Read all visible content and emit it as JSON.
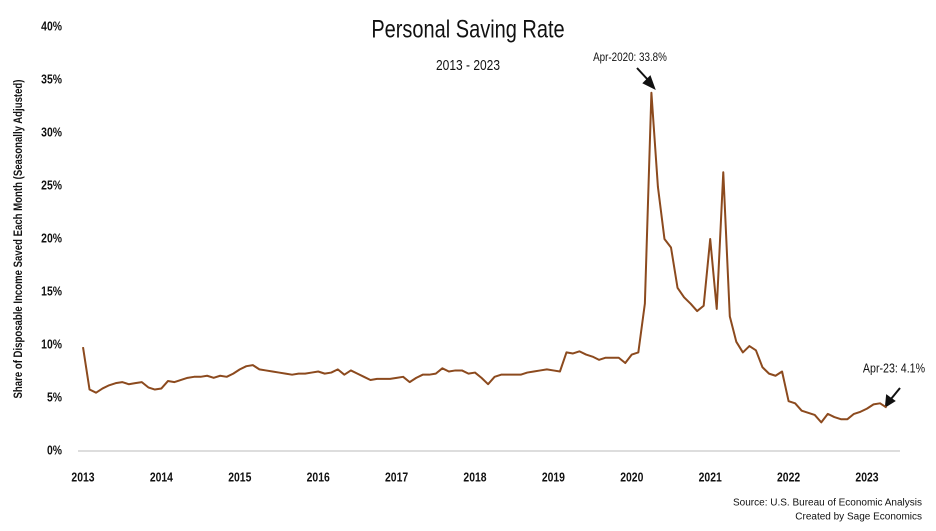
{
  "chart_data": {
    "type": "line",
    "title": "Personal Saving Rate",
    "subtitle": "2013 - 2023",
    "ylabel": "Share of Disposable Income Saved Each Month (Seasonally Adjusted)",
    "categories": [
      "2013",
      null,
      null,
      null,
      null,
      null,
      null,
      null,
      null,
      null,
      null,
      null,
      "2014",
      null,
      null,
      null,
      null,
      null,
      null,
      null,
      null,
      null,
      null,
      null,
      "2015",
      null,
      null,
      null,
      null,
      null,
      null,
      null,
      null,
      null,
      null,
      null,
      "2016",
      null,
      null,
      null,
      null,
      null,
      null,
      null,
      null,
      null,
      null,
      null,
      "2017",
      null,
      null,
      null,
      null,
      null,
      null,
      null,
      null,
      null,
      null,
      null,
      "2018",
      null,
      null,
      null,
      null,
      null,
      null,
      null,
      null,
      null,
      null,
      null,
      "2019",
      null,
      null,
      null,
      null,
      null,
      null,
      null,
      null,
      null,
      null,
      null,
      "2020",
      null,
      null,
      null,
      null,
      null,
      null,
      null,
      null,
      null,
      null,
      null,
      "2021",
      null,
      null,
      null,
      null,
      null,
      null,
      null,
      null,
      null,
      null,
      null,
      "2022",
      null,
      null,
      null,
      null,
      null,
      null,
      null,
      null,
      null,
      null,
      null,
      "2023",
      null,
      null,
      null
    ],
    "series": [
      {
        "name": "Personal Saving Rate",
        "color": "#8c4a1e",
        "values": [
          9.8,
          5.8,
          5.5,
          5.9,
          6.2,
          6.4,
          6.5,
          6.3,
          6.4,
          6.5,
          6.0,
          5.8,
          5.9,
          6.6,
          6.5,
          6.7,
          6.9,
          7.0,
          7.0,
          7.1,
          6.9,
          7.1,
          7.0,
          7.3,
          7.7,
          8.0,
          8.1,
          7.7,
          7.6,
          7.5,
          7.4,
          7.3,
          7.2,
          7.3,
          7.3,
          7.4,
          7.5,
          7.3,
          7.4,
          7.7,
          7.2,
          7.6,
          7.3,
          7.0,
          6.7,
          6.8,
          6.8,
          6.8,
          6.9,
          7.0,
          6.5,
          6.9,
          7.2,
          7.2,
          7.3,
          7.8,
          7.5,
          7.6,
          7.6,
          7.3,
          7.4,
          6.9,
          6.3,
          7.0,
          7.2,
          7.2,
          7.2,
          7.2,
          7.4,
          7.5,
          7.6,
          7.7,
          7.6,
          7.5,
          9.3,
          9.2,
          9.4,
          9.1,
          8.9,
          8.6,
          8.8,
          8.8,
          8.8,
          8.3,
          9.1,
          9.3,
          13.9,
          33.8,
          24.9,
          20.0,
          19.2,
          15.4,
          14.5,
          13.9,
          13.2,
          13.7,
          20.0,
          13.4,
          26.3,
          12.7,
          10.3,
          9.3,
          9.9,
          9.5,
          7.9,
          7.3,
          7.1,
          7.5,
          4.7,
          4.5,
          3.8,
          3.6,
          3.4,
          2.7,
          3.5,
          3.2,
          3.0,
          3.0,
          3.5,
          3.7,
          4.0,
          4.4,
          4.5,
          4.1
        ]
      }
    ],
    "ylim": [
      0,
      40
    ],
    "yticks": [
      {
        "value": 0,
        "label": "0%"
      },
      {
        "value": 5,
        "label": "5%"
      },
      {
        "value": 10,
        "label": "10%"
      },
      {
        "value": 15,
        "label": "15%"
      },
      {
        "value": 20,
        "label": "20%"
      },
      {
        "value": 25,
        "label": "25%"
      },
      {
        "value": 30,
        "label": "30%"
      },
      {
        "value": 35,
        "label": "35%"
      },
      {
        "value": 40,
        "label": "40%"
      }
    ],
    "annotations": [
      {
        "text": "Apr-2020: 33.8%"
      },
      {
        "text": "Apr-23: 4.1%"
      }
    ],
    "source": [
      "Source: U.S. Bureau of Economic Analysis",
      "Created by Sage Economics"
    ]
  }
}
